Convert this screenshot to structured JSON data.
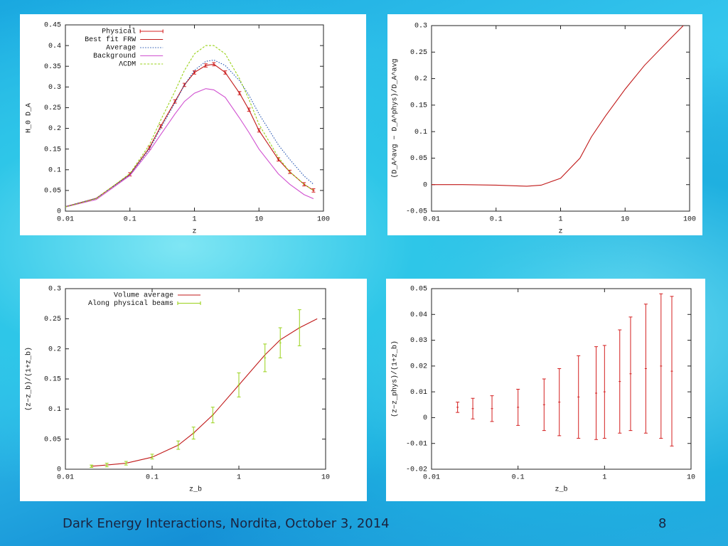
{
  "chart_data": [
    {
      "type": "line",
      "xlabel": "z",
      "ylabel": "H_0 D_A",
      "xscale": "log",
      "xlim": [
        0.01,
        100
      ],
      "xticks": [
        0.01,
        0.1,
        1,
        10,
        100
      ],
      "ylim": [
        0,
        0.45
      ],
      "yticks": [
        0,
        0.05,
        0.1,
        0.15,
        0.2,
        0.25,
        0.3,
        0.35,
        0.4,
        0.45
      ],
      "legend": "top-left",
      "x": [
        0.01,
        0.03,
        0.1,
        0.2,
        0.3,
        0.5,
        0.7,
        1,
        1.5,
        2,
        3,
        5,
        7,
        10,
        20,
        30,
        50,
        70
      ],
      "series": [
        {
          "name": "Physical",
          "color": "#d42020",
          "style": "errorbars",
          "values": [
            null,
            null,
            0.089,
            0.153,
            0.205,
            0.265,
            0.305,
            0.335,
            0.352,
            0.355,
            0.335,
            0.285,
            0.245,
            0.195,
            0.125,
            0.095,
            0.065,
            0.05
          ],
          "errors": [
            null,
            null,
            0.004,
            0.004,
            0.004,
            0.004,
            0.004,
            0.004,
            0.004,
            0.004,
            0.004,
            0.004,
            0.004,
            0.004,
            0.004,
            0.004,
            0.004,
            0.004
          ]
        },
        {
          "name": "Best fit FRW",
          "color": "#c01818",
          "style": "solid",
          "values": [
            0.011,
            0.031,
            0.089,
            0.153,
            0.205,
            0.265,
            0.305,
            0.335,
            0.352,
            0.355,
            0.335,
            0.285,
            0.245,
            0.195,
            0.125,
            0.095,
            0.065,
            0.05
          ]
        },
        {
          "name": "Average",
          "color": "#2050b0",
          "style": "dotted",
          "values": [
            0.011,
            0.031,
            0.088,
            0.15,
            0.2,
            0.262,
            0.305,
            0.34,
            0.362,
            0.365,
            0.352,
            0.315,
            0.28,
            0.235,
            0.16,
            0.125,
            0.085,
            0.065
          ]
        },
        {
          "name": "Background",
          "color": "#d050d0",
          "style": "solid",
          "values": [
            0.01,
            0.028,
            0.086,
            0.145,
            0.185,
            0.235,
            0.265,
            0.285,
            0.296,
            0.293,
            0.275,
            0.225,
            0.19,
            0.15,
            0.09,
            0.065,
            0.04,
            0.03
          ]
        },
        {
          "name": "ΛCDM",
          "color": "#9ad21a",
          "style": "dashed",
          "values": [
            0.01,
            0.03,
            0.091,
            0.16,
            0.22,
            0.29,
            0.34,
            0.38,
            0.4,
            0.4,
            0.38,
            0.32,
            0.27,
            0.21,
            0.13,
            0.095,
            0.065,
            0.05
          ]
        }
      ]
    },
    {
      "type": "line",
      "xlabel": "z",
      "ylabel": "(D_A^avg − D_A^phys)/D_A^avg",
      "xscale": "log",
      "xlim": [
        0.01,
        100
      ],
      "xticks": [
        0.01,
        0.1,
        1,
        10,
        100
      ],
      "ylim": [
        -0.05,
        0.3
      ],
      "yticks": [
        -0.05,
        0,
        0.05,
        0.1,
        0.15,
        0.2,
        0.25,
        0.3
      ],
      "x": [
        0.01,
        0.03,
        0.1,
        0.3,
        0.5,
        1,
        2,
        3,
        5,
        10,
        20,
        50,
        80
      ],
      "series": [
        {
          "color": "#c01818",
          "style": "solid",
          "values": [
            0,
            0,
            -0.001,
            -0.003,
            -0.001,
            0.012,
            0.05,
            0.09,
            0.13,
            0.18,
            0.225,
            0.275,
            0.3
          ]
        }
      ]
    },
    {
      "type": "line",
      "xlabel": "z_b",
      "ylabel": "(z−z_b)/(1+z_b)",
      "xscale": "log",
      "xlim": [
        0.01,
        10
      ],
      "xticks": [
        0.01,
        0.1,
        1,
        10
      ],
      "ylim": [
        0,
        0.3
      ],
      "yticks": [
        0,
        0.05,
        0.1,
        0.15,
        0.2,
        0.25,
        0.3
      ],
      "legend": "top-left",
      "x": [
        0.02,
        0.03,
        0.05,
        0.1,
        0.2,
        0.3,
        0.5,
        1,
        2,
        3,
        5,
        8
      ],
      "series": [
        {
          "name": "Volume average",
          "color": "#c01818",
          "style": "solid",
          "values": [
            0.005,
            0.007,
            0.01,
            0.02,
            0.04,
            0.06,
            0.09,
            0.14,
            0.19,
            0.215,
            0.235,
            0.25
          ]
        },
        {
          "name": "Along physical beams",
          "color": "#9ad21a",
          "style": "errorbars",
          "values": [
            0.005,
            0.007,
            0.01,
            0.021,
            0.04,
            0.06,
            0.09,
            0.14,
            0.185,
            0.21,
            0.235,
            null
          ],
          "errors": [
            0.002,
            0.003,
            0.003,
            0.004,
            0.007,
            0.01,
            0.013,
            0.02,
            0.023,
            0.025,
            0.03,
            null
          ]
        }
      ]
    },
    {
      "type": "line",
      "xlabel": "z_b",
      "ylabel": "(z−z_phys)/(1+z_b)",
      "xscale": "log",
      "xlim": [
        0.01,
        10
      ],
      "xticks": [
        0.01,
        0.1,
        1,
        10
      ],
      "ylim": [
        -0.02,
        0.05
      ],
      "yticks": [
        -0.02,
        -0.01,
        0,
        0.01,
        0.02,
        0.03,
        0.04,
        0.05
      ],
      "x": [
        0.02,
        0.03,
        0.05,
        0.1,
        0.2,
        0.3,
        0.5,
        0.8,
        1,
        1.5,
        2,
        3,
        4.5,
        6
      ],
      "series": [
        {
          "color": "#d42020",
          "style": "errorbars",
          "values": [
            0.004,
            0.0035,
            0.0035,
            0.004,
            0.005,
            0.006,
            0.008,
            0.0095,
            0.01,
            0.014,
            0.017,
            0.019,
            0.02,
            0.018
          ],
          "errors": [
            0.002,
            0.004,
            0.005,
            0.007,
            0.01,
            0.013,
            0.016,
            0.018,
            0.018,
            0.02,
            0.022,
            0.025,
            0.028,
            0.029
          ]
        }
      ]
    }
  ],
  "footer": "Dark Energy Interactions, Nordita, October 3, 2014",
  "slide_number": 8
}
